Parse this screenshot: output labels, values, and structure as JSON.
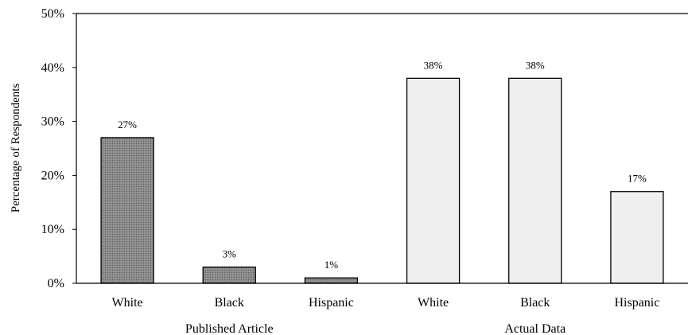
{
  "chart_data": {
    "type": "bar",
    "ylabel": "Percentage of Respondents",
    "ylim": [
      0,
      50
    ],
    "ytick_values": [
      0,
      10,
      20,
      30,
      40,
      50
    ],
    "ytick_labels": [
      "0%",
      "10%",
      "20%",
      "30%",
      "40%",
      "50%"
    ],
    "grid": false,
    "groups": [
      {
        "name": "Published Article",
        "color": "#8c8c8c",
        "pattern": "dotted-fill",
        "categories": [
          "White",
          "Black",
          "Hispanic"
        ],
        "values": [
          27,
          3,
          1
        ],
        "labels": [
          "27%",
          "3%",
          "1%"
        ]
      },
      {
        "name": "Actual Data",
        "color": "#efefef",
        "pattern": "solid",
        "categories": [
          "White",
          "Black",
          "Hispanic"
        ],
        "values": [
          38,
          38,
          17
        ],
        "labels": [
          "38%",
          "38%",
          "17%"
        ]
      }
    ]
  }
}
